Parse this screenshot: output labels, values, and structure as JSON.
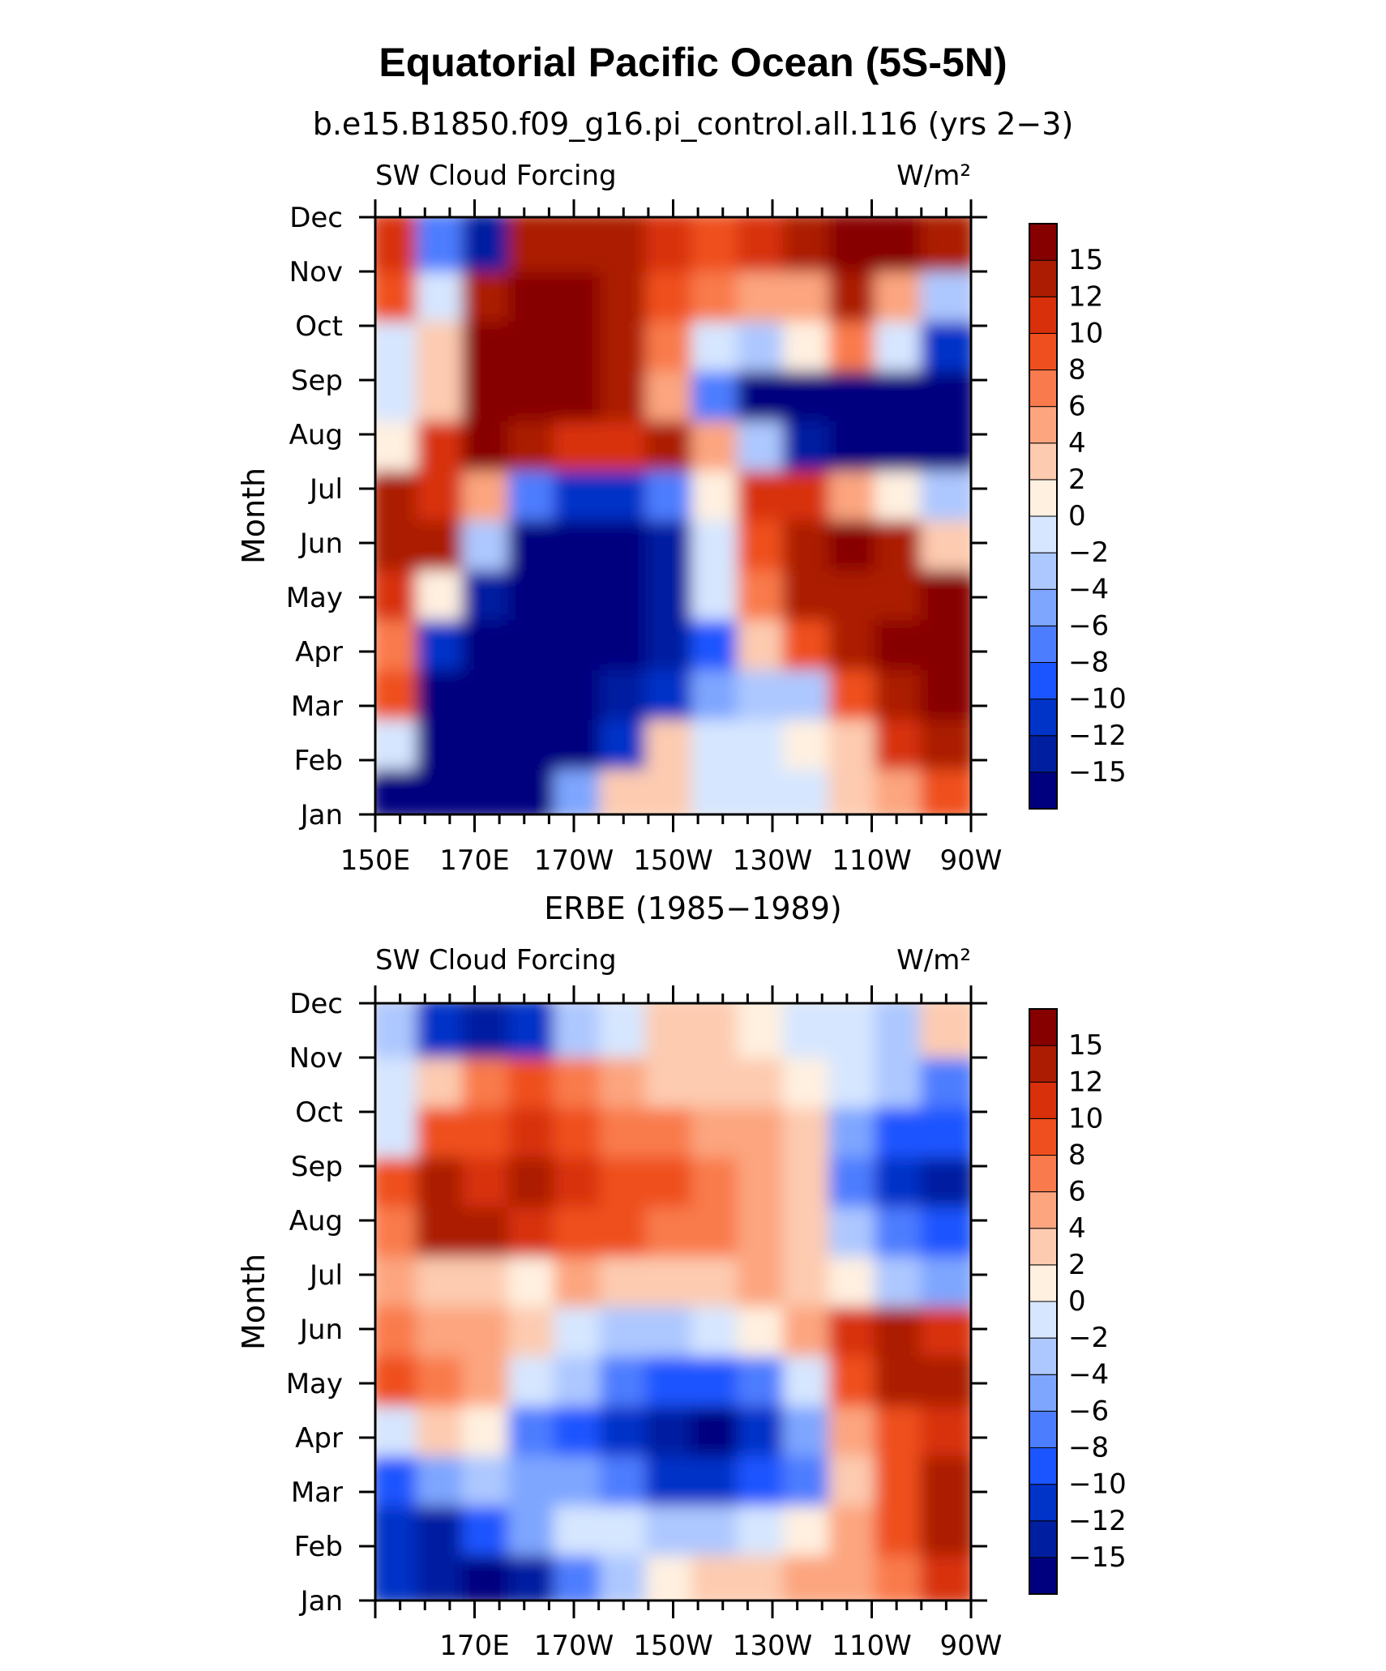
{
  "figure": {
    "title": "Equatorial Pacific Ocean (5S-5N)"
  },
  "colorbar": {
    "colors": [
      "#00007f",
      "#001fa0",
      "#0033c8",
      "#1a55ff",
      "#4d7dff",
      "#7ea6ff",
      "#adc8ff",
      "#d6e6ff",
      "#fff0e0",
      "#fdcbb0",
      "#fca57f",
      "#f97a4c",
      "#ef4f1e",
      "#d8300a",
      "#ab1c03",
      "#870000"
    ],
    "tick_labels": [
      "15",
      "12",
      "10",
      "8",
      "6",
      "4",
      "2",
      "0",
      "−2",
      "−4",
      "−6",
      "−8",
      "−10",
      "−12",
      "−15"
    ]
  },
  "chart_data": [
    {
      "type": "heatmap",
      "subtitle": "b.e15.B1850.f09_g16.pi_control.all.116 (yrs 2−3)",
      "left_label": "SW Cloud Forcing",
      "right_label": "W/m²",
      "ylabel": "Month",
      "xlabel": "",
      "x_tick_labels": [
        "150E",
        "170E",
        "170W",
        "150W",
        "130W",
        "110W",
        "90W"
      ],
      "y_tick_labels": [
        "Jan",
        "Feb",
        "Mar",
        "Apr",
        "May",
        "Jun",
        "Jul",
        "Aug",
        "Sep",
        "Oct",
        "Nov",
        "Dec"
      ],
      "contour_levels": [
        -15,
        -12,
        -10,
        -8,
        -6,
        -4,
        -2,
        0,
        2,
        4,
        6,
        8,
        10,
        12,
        15
      ],
      "x_grid": [
        "150E",
        "160E",
        "170E",
        "180",
        "170W",
        "160W",
        "150W",
        "140W",
        "130W",
        "120W",
        "110W",
        "100W",
        "90W"
      ],
      "y_grid": [
        "Jan",
        "Feb",
        "Mar",
        "Apr",
        "May",
        "Jun",
        "Jul",
        "Aug",
        "Sep",
        "Oct",
        "Nov",
        "Dec"
      ],
      "values": [
        [
          -16,
          -16,
          -16,
          -16,
          -6,
          2,
          3,
          -1,
          -2,
          -1,
          2,
          4,
          8
        ],
        [
          -2,
          -16,
          -16,
          -16,
          -16,
          -12,
          2,
          -2,
          -1,
          0,
          2,
          10,
          14
        ],
        [
          8,
          -16,
          -16,
          -16,
          -16,
          -14,
          -12,
          -6,
          -4,
          -4,
          8,
          14,
          16
        ],
        [
          6,
          -12,
          -16,
          -16,
          -16,
          -16,
          -14,
          -10,
          2,
          8,
          12,
          16,
          16
        ],
        [
          10,
          0,
          -14,
          -16,
          -16,
          -16,
          -14,
          -2,
          6,
          14,
          14,
          14,
          16
        ],
        [
          14,
          13,
          -4,
          -16,
          -16,
          -16,
          -14,
          -2,
          8,
          14,
          16,
          14,
          2
        ],
        [
          14,
          10,
          4,
          -8,
          -12,
          -12,
          -8,
          0,
          10,
          10,
          4,
          0,
          -4
        ],
        [
          0,
          10,
          16,
          14,
          10,
          10,
          14,
          4,
          -4,
          -14,
          -16,
          -16,
          -16
        ],
        [
          -2,
          2,
          16,
          16,
          16,
          12,
          4,
          -8,
          -16,
          -16,
          -16,
          -16,
          -16
        ],
        [
          -2,
          2,
          16,
          16,
          16,
          14,
          6,
          -2,
          -4,
          0,
          6,
          -2,
          -12
        ],
        [
          8,
          -2,
          14,
          16,
          16,
          14,
          8,
          6,
          4,
          4,
          14,
          4,
          -4
        ],
        [
          10,
          -8,
          -14,
          14,
          14,
          14,
          10,
          8,
          10,
          14,
          16,
          16,
          14
        ]
      ]
    },
    {
      "type": "heatmap",
      "subtitle": "ERBE (1985−1989)",
      "left_label": "SW Cloud Forcing",
      "right_label": "W/m²",
      "ylabel": "Month",
      "xlabel": "",
      "x_tick_labels": [
        "170E",
        "170W",
        "150W",
        "130W",
        "110W",
        "90W"
      ],
      "y_tick_labels": [
        "Jan",
        "Feb",
        "Mar",
        "Apr",
        "May",
        "Jun",
        "Jul",
        "Aug",
        "Sep",
        "Oct",
        "Nov",
        "Dec"
      ],
      "contour_levels": [
        -15,
        -12,
        -10,
        -8,
        -6,
        -4,
        -2,
        0,
        2,
        4,
        6,
        8,
        10,
        12,
        15
      ],
      "x_grid": [
        "150E",
        "160E",
        "170E",
        "180",
        "170W",
        "160W",
        "150W",
        "140W",
        "130W",
        "120W",
        "110W",
        "100W",
        "90W"
      ],
      "y_grid": [
        "Jan",
        "Feb",
        "Mar",
        "Apr",
        "May",
        "Jun",
        "Jul",
        "Aug",
        "Sep",
        "Oct",
        "Nov",
        "Dec"
      ],
      "values": [
        [
          -12,
          -14,
          -16,
          -14,
          -8,
          -4,
          0,
          2,
          2,
          4,
          4,
          6,
          10
        ],
        [
          -12,
          -14,
          -10,
          -6,
          -2,
          -2,
          -4,
          -4,
          -2,
          0,
          4,
          8,
          14
        ],
        [
          -10,
          -6,
          -4,
          -6,
          -6,
          -8,
          -12,
          -12,
          -10,
          -8,
          2,
          8,
          12
        ],
        [
          -2,
          2,
          0,
          -8,
          -10,
          -12,
          -14,
          -16,
          -12,
          -6,
          4,
          8,
          10
        ],
        [
          8,
          6,
          4,
          -2,
          -4,
          -8,
          -10,
          -10,
          -8,
          -2,
          8,
          12,
          12
        ],
        [
          6,
          4,
          4,
          2,
          -2,
          -4,
          -4,
          -2,
          0,
          4,
          10,
          12,
          10
        ],
        [
          4,
          2,
          2,
          0,
          4,
          2,
          2,
          2,
          4,
          2,
          0,
          -4,
          -6
        ],
        [
          6,
          12,
          12,
          10,
          8,
          8,
          6,
          6,
          4,
          2,
          -4,
          -8,
          -10
        ],
        [
          8,
          12,
          10,
          12,
          10,
          8,
          8,
          6,
          4,
          2,
          -8,
          -12,
          -14
        ],
        [
          -2,
          8,
          8,
          10,
          8,
          6,
          6,
          4,
          4,
          2,
          -6,
          -10,
          -10
        ],
        [
          -2,
          2,
          6,
          8,
          6,
          4,
          2,
          2,
          2,
          0,
          -2,
          -4,
          -8
        ],
        [
          -4,
          -12,
          -14,
          -12,
          -4,
          -2,
          2,
          2,
          0,
          -2,
          -2,
          -4,
          2
        ]
      ]
    }
  ]
}
